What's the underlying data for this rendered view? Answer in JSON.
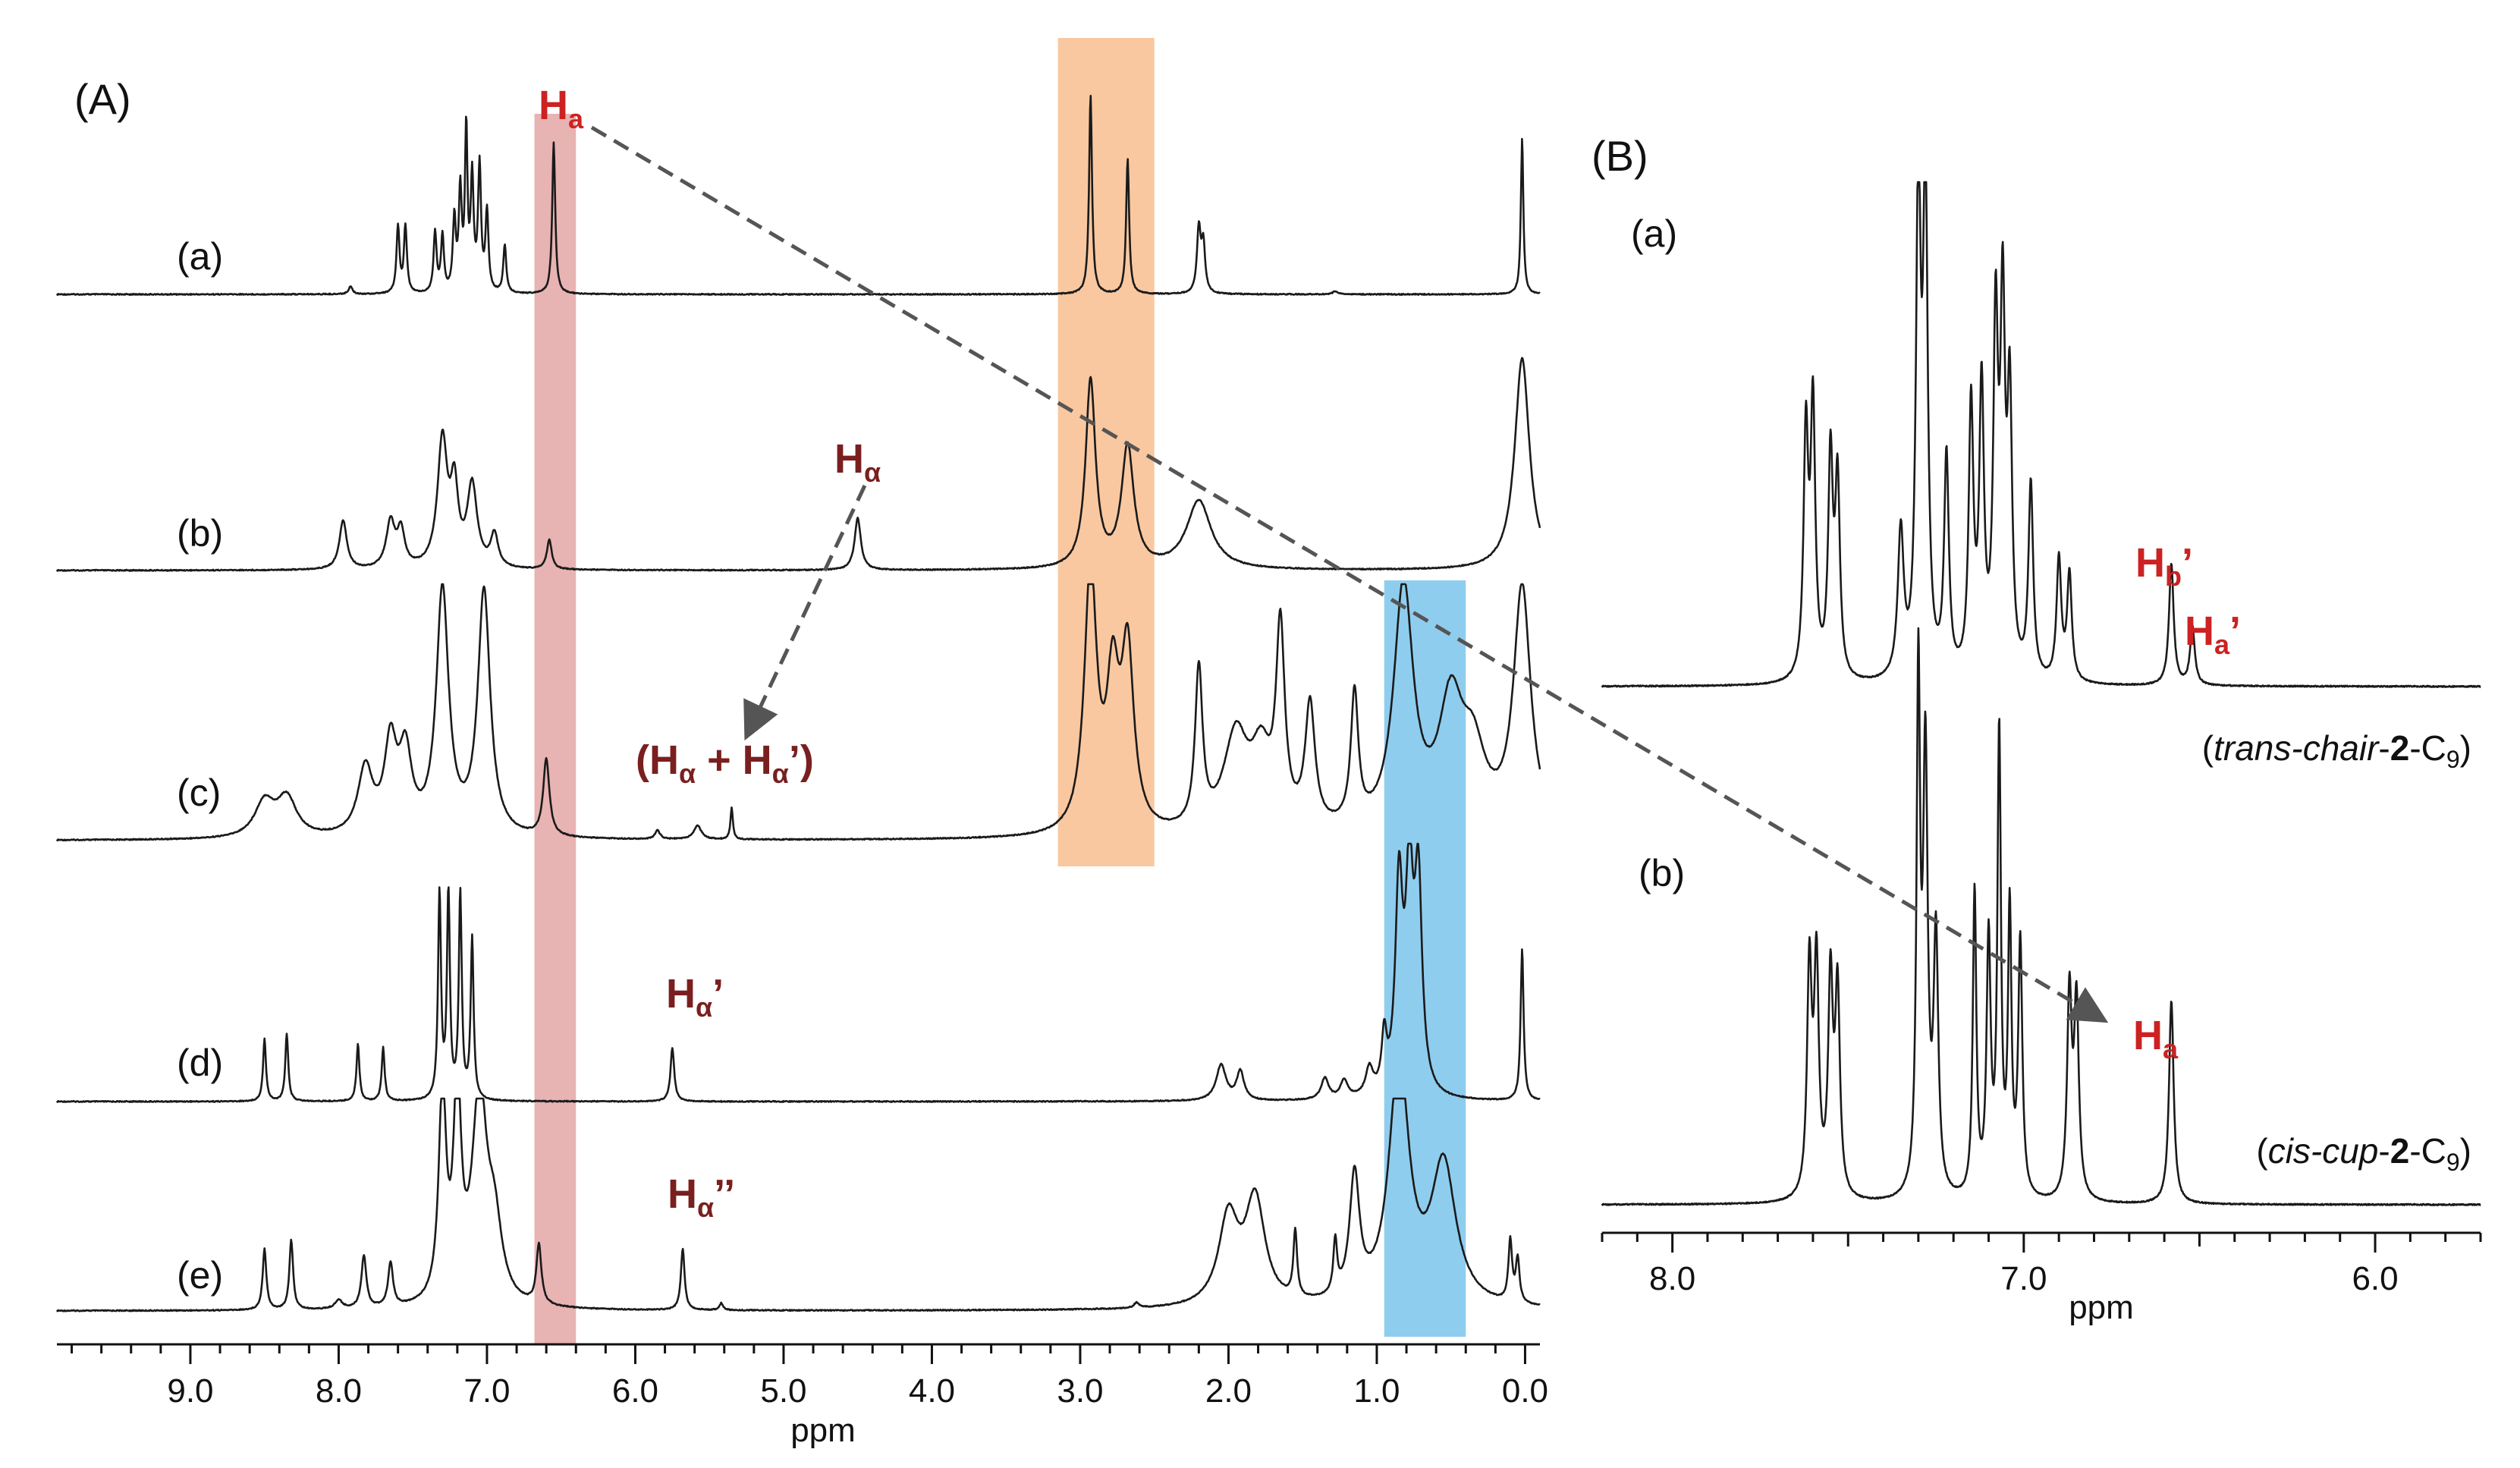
{
  "colors": {
    "red_band": "#e8b3b3",
    "orange_band": "#f9c8a0",
    "blue_band": "#8fcdee",
    "annotation_red": "#cc2222",
    "annotation_dark": "#7a1f1f",
    "arrow": "#555555"
  },
  "chart_data": [
    {
      "type": "line",
      "panel": "(A)",
      "xlabel": "ppm",
      "xlim": [
        9.9,
        -0.1
      ],
      "x_reversed": true,
      "ticks": [
        {
          "value": 9.0,
          "label": "9.0"
        },
        {
          "value": 8.0,
          "label": "8.0"
        },
        {
          "value": 7.0,
          "label": "7.0"
        },
        {
          "value": 6.0,
          "label": "6.0"
        },
        {
          "value": 5.0,
          "label": "5.0"
        },
        {
          "value": 4.0,
          "label": "4.0"
        },
        {
          "value": 3.0,
          "label": "3.0"
        },
        {
          "value": 2.0,
          "label": "2.0"
        },
        {
          "value": 1.0,
          "label": "1.0"
        },
        {
          "value": 0.0,
          "label": "0.0"
        }
      ],
      "highlight_bands": [
        {
          "name": "red",
          "from": 6.68,
          "to": 6.4
        },
        {
          "name": "orange",
          "from": 3.15,
          "to": 2.5
        },
        {
          "name": "blue",
          "from": 0.95,
          "to": 0.4
        }
      ],
      "series": [
        {
          "label": "(a)",
          "baseline": 0,
          "max_height": 1.0,
          "peaks": [
            [
              7.92,
              0.05,
              0.015
            ],
            [
              7.6,
              0.42,
              0.012
            ],
            [
              7.55,
              0.42,
              0.012
            ],
            [
              7.35,
              0.38,
              0.012
            ],
            [
              7.3,
              0.35,
              0.012
            ],
            [
              7.22,
              0.45,
              0.012
            ],
            [
              7.18,
              0.62,
              0.012
            ],
            [
              7.14,
              1.0,
              0.01
            ],
            [
              7.1,
              0.7,
              0.012
            ],
            [
              7.05,
              0.78,
              0.012
            ],
            [
              7.0,
              0.5,
              0.012
            ],
            [
              6.88,
              0.3,
              0.012
            ],
            [
              6.55,
              0.95,
              0.012
            ],
            [
              2.93,
              1.25,
              0.012
            ],
            [
              2.68,
              0.85,
              0.012
            ],
            [
              2.2,
              0.4,
              0.015
            ],
            [
              2.17,
              0.3,
              0.015
            ],
            [
              1.28,
              0.02,
              0.02
            ],
            [
              0.02,
              0.98,
              0.01
            ]
          ]
        },
        {
          "label": "(b)",
          "baseline": 0,
          "max_height": 1.0,
          "peaks": [
            [
              7.97,
              0.3,
              0.03
            ],
            [
              7.65,
              0.28,
              0.035
            ],
            [
              7.58,
              0.22,
              0.03
            ],
            [
              7.3,
              0.78,
              0.04
            ],
            [
              7.22,
              0.45,
              0.03
            ],
            [
              7.1,
              0.5,
              0.04
            ],
            [
              6.95,
              0.2,
              0.03
            ],
            [
              6.58,
              0.18,
              0.02
            ],
            [
              4.5,
              0.32,
              0.025
            ],
            [
              2.93,
              1.15,
              0.04
            ],
            [
              2.68,
              0.74,
              0.05
            ],
            [
              2.2,
              0.42,
              0.1
            ],
            [
              0.02,
              1.3,
              0.06
            ]
          ]
        },
        {
          "label": "(c)",
          "baseline": 0,
          "max_height": 1.0,
          "peaks": [
            [
              8.5,
              0.2,
              0.08
            ],
            [
              8.35,
              0.22,
              0.08
            ],
            [
              7.82,
              0.38,
              0.06
            ],
            [
              7.65,
              0.5,
              0.05
            ],
            [
              7.55,
              0.44,
              0.05
            ],
            [
              7.3,
              1.4,
              0.05
            ],
            [
              7.02,
              1.4,
              0.05
            ],
            [
              6.6,
              0.44,
              0.025
            ],
            [
              5.85,
              0.05,
              0.02
            ],
            [
              5.58,
              0.08,
              0.03
            ],
            [
              5.35,
              0.18,
              0.01
            ],
            [
              2.93,
              1.5,
              0.05
            ],
            [
              2.78,
              0.8,
              0.05
            ],
            [
              2.68,
              1.0,
              0.05
            ],
            [
              2.2,
              0.9,
              0.03
            ],
            [
              1.95,
              0.55,
              0.1
            ],
            [
              1.78,
              0.4,
              0.08
            ],
            [
              1.65,
              1.1,
              0.035
            ],
            [
              1.45,
              0.7,
              0.04
            ],
            [
              1.15,
              0.75,
              0.03
            ],
            [
              0.82,
              1.4,
              0.08
            ],
            [
              0.5,
              0.7,
              0.1
            ],
            [
              0.35,
              0.4,
              0.1
            ],
            [
              0.02,
              1.4,
              0.07
            ]
          ]
        },
        {
          "label": "(d)",
          "baseline": 0,
          "max_height": 1.0,
          "peaks": [
            [
              8.5,
              0.35,
              0.012
            ],
            [
              8.35,
              0.38,
              0.012
            ],
            [
              7.87,
              0.32,
              0.012
            ],
            [
              7.7,
              0.3,
              0.012
            ],
            [
              7.32,
              1.15,
              0.012
            ],
            [
              7.26,
              1.15,
              0.012
            ],
            [
              7.18,
              1.15,
              0.012
            ],
            [
              7.1,
              0.9,
              0.012
            ],
            [
              5.75,
              0.3,
              0.015
            ],
            [
              2.05,
              0.2,
              0.04
            ],
            [
              1.92,
              0.16,
              0.03
            ],
            [
              1.35,
              0.12,
              0.03
            ],
            [
              1.22,
              0.1,
              0.03
            ],
            [
              1.05,
              0.15,
              0.03
            ],
            [
              0.95,
              0.3,
              0.02
            ],
            [
              0.85,
              1.15,
              0.03
            ],
            [
              0.78,
              1.15,
              0.03
            ],
            [
              0.72,
              1.15,
              0.03
            ],
            [
              0.02,
              0.85,
              0.012
            ]
          ]
        },
        {
          "label": "(e)",
          "baseline": 0,
          "max_height": 1.0,
          "peaks": [
            [
              8.5,
              0.35,
              0.015
            ],
            [
              8.32,
              0.4,
              0.015
            ],
            [
              8.0,
              0.05,
              0.03
            ],
            [
              7.83,
              0.3,
              0.02
            ],
            [
              7.65,
              0.25,
              0.02
            ],
            [
              7.3,
              1.2,
              0.03
            ],
            [
              7.2,
              1.2,
              0.03
            ],
            [
              7.05,
              1.2,
              0.06
            ],
            [
              6.95,
              0.4,
              0.06
            ],
            [
              6.65,
              0.34,
              0.02
            ],
            [
              5.68,
              0.35,
              0.015
            ],
            [
              5.42,
              0.04,
              0.015
            ],
            [
              2.62,
              0.03,
              0.02
            ],
            [
              2.0,
              0.5,
              0.08
            ],
            [
              1.82,
              0.6,
              0.08
            ],
            [
              1.55,
              0.38,
              0.015
            ],
            [
              1.28,
              0.3,
              0.015
            ],
            [
              1.15,
              0.7,
              0.04
            ],
            [
              0.85,
              1.4,
              0.08
            ],
            [
              0.55,
              0.8,
              0.1
            ],
            [
              0.1,
              0.35,
              0.015
            ],
            [
              0.05,
              0.25,
              0.015
            ]
          ]
        }
      ],
      "annotations": [
        "Hₐ",
        "Hα",
        "(Hα + Hα')",
        "Hα'",
        "Hα''"
      ]
    },
    {
      "type": "line",
      "panel": "(B)",
      "xlabel": "ppm",
      "xlim": [
        8.2,
        5.7
      ],
      "x_reversed": true,
      "ticks": [
        {
          "value": 8.0,
          "label": "8.0"
        },
        {
          "value": 7.0,
          "label": "7.0"
        },
        {
          "value": 6.0,
          "label": "6.0"
        }
      ],
      "series": [
        {
          "label": "(a)",
          "caption": "trans-chair-2-C9",
          "peaks": [
            [
              7.62,
              0.5,
              0.008
            ],
            [
              7.6,
              0.55,
              0.008
            ],
            [
              7.55,
              0.45,
              0.008
            ],
            [
              7.53,
              0.4,
              0.008
            ],
            [
              7.35,
              0.3,
              0.01
            ],
            [
              7.3,
              1.0,
              0.008
            ],
            [
              7.28,
              1.0,
              0.008
            ],
            [
              7.22,
              0.45,
              0.008
            ],
            [
              7.15,
              0.55,
              0.008
            ],
            [
              7.12,
              0.58,
              0.008
            ],
            [
              7.08,
              0.7,
              0.008
            ],
            [
              7.06,
              0.72,
              0.008
            ],
            [
              7.04,
              0.55,
              0.008
            ],
            [
              6.98,
              0.4,
              0.008
            ],
            [
              6.9,
              0.25,
              0.008
            ],
            [
              6.87,
              0.22,
              0.008
            ],
            [
              6.58,
              0.25,
              0.008
            ],
            [
              6.52,
              0.12,
              0.008
            ]
          ],
          "annotations": [
            "Hb'",
            "Ha'"
          ]
        },
        {
          "label": "(b)",
          "caption": "cis-cup-2-C9",
          "peaks": [
            [
              7.61,
              0.45,
              0.008
            ],
            [
              7.59,
              0.45,
              0.008
            ],
            [
              7.55,
              0.42,
              0.008
            ],
            [
              7.53,
              0.4,
              0.008
            ],
            [
              7.3,
              1.0,
              0.006
            ],
            [
              7.28,
              0.85,
              0.008
            ],
            [
              7.25,
              0.5,
              0.008
            ],
            [
              7.14,
              0.6,
              0.006
            ],
            [
              7.1,
              0.5,
              0.007
            ],
            [
              7.07,
              0.9,
              0.006
            ],
            [
              7.04,
              0.55,
              0.006
            ],
            [
              7.01,
              0.5,
              0.007
            ],
            [
              6.87,
              0.4,
              0.008
            ],
            [
              6.85,
              0.38,
              0.008
            ],
            [
              6.58,
              0.4,
              0.008
            ]
          ],
          "annotations": [
            "Hₐ"
          ]
        }
      ]
    }
  ],
  "labels": {
    "panel_a": "(A)",
    "panel_b": "(B)",
    "ppm_a": "ppm",
    "ppm_b": "ppm",
    "trace_a": "(a)",
    "trace_b": "(b)",
    "trace_c": "(c)",
    "trace_d": "(d)",
    "trace_e": "(e)",
    "b_trace_a": "(a)",
    "b_trace_b": "(b)",
    "ann_Ha_top": "H",
    "ann_Ha_top_sub": "a",
    "ann_Halpha_b": "H",
    "ann_Halpha_b_sub": "α",
    "ann_c_open": "(H",
    "ann_c_sub1": "α",
    "ann_c_mid": " + H",
    "ann_c_sub2": "α",
    "ann_c_close": "’)",
    "ann_d_main": "H",
    "ann_d_sub": "α",
    "ann_d_prime": "’",
    "ann_e_main": "H",
    "ann_e_sub": "α",
    "ann_e_prime": "’’",
    "ann_Hb_prime": "H",
    "ann_Hb_prime_sub": "b",
    "ann_Hb_prime_mark": "’",
    "ann_Ha_prime": "H",
    "ann_Ha_prime_sub": "a",
    "ann_Ha_prime_mark": "’",
    "ann_Ha_b": "H",
    "ann_Ha_b_sub": "a",
    "caption_a_open": "(",
    "caption_a_italic": "trans-chair",
    "caption_a_dash1": "-",
    "caption_a_bold": "2",
    "caption_a_dash2": "-C",
    "caption_a_sub": "9",
    "caption_a_close": ")",
    "caption_b_open": "(",
    "caption_b_italic": "cis-cup",
    "caption_b_dash1": "-",
    "caption_b_bold": "2",
    "caption_b_dash2": "-C",
    "caption_b_sub": "9",
    "caption_b_close": ")"
  }
}
